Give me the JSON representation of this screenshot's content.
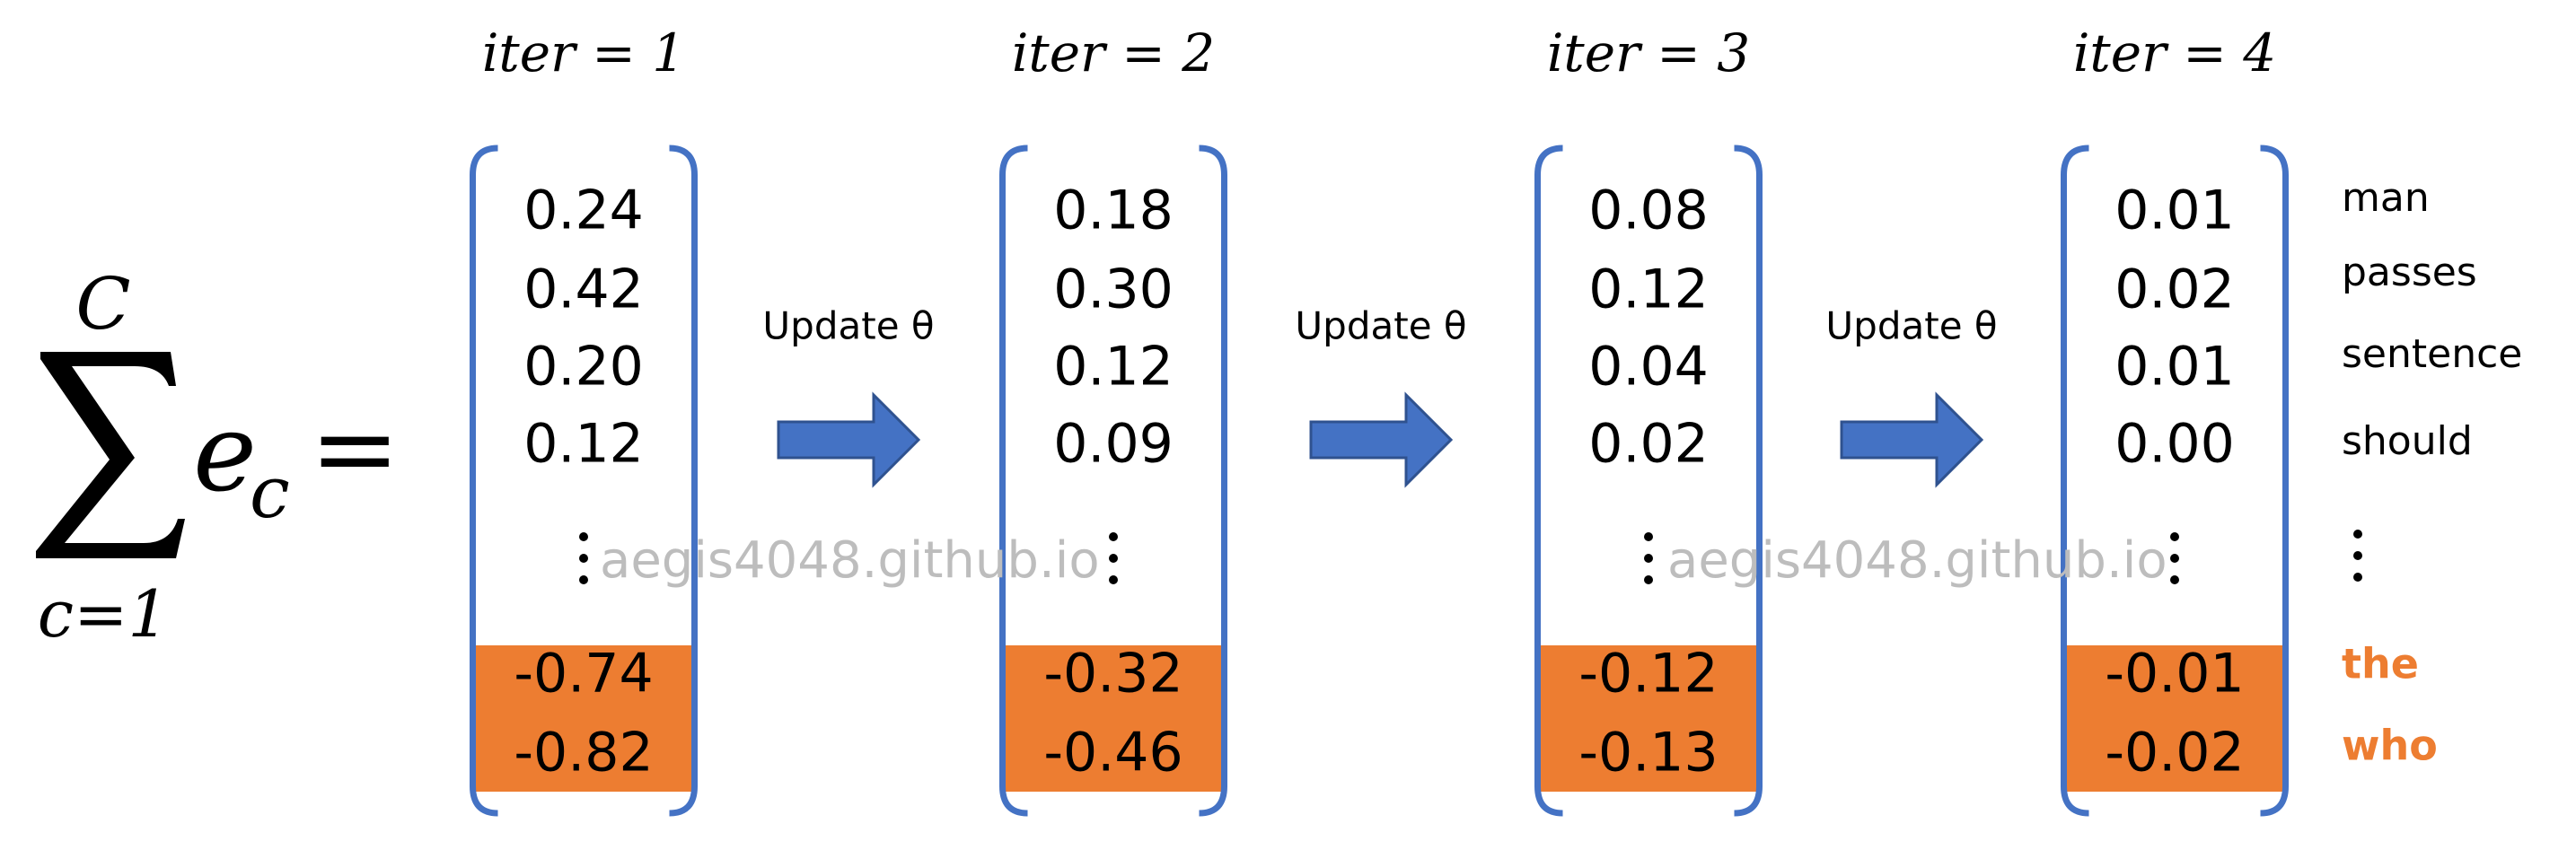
{
  "formula": {
    "upper": "C",
    "lower": "c=1",
    "term": "e",
    "subscript": "c",
    "equals": "="
  },
  "columns": [
    {
      "label": "iter = 1",
      "values": [
        "0.24",
        "0.42",
        "0.20",
        "0.12"
      ],
      "highlighted": [
        "-0.74",
        "-0.82"
      ]
    },
    {
      "label": "iter = 2",
      "values": [
        "0.18",
        "0.30",
        "0.12",
        "0.09"
      ],
      "highlighted": [
        "-0.32",
        "-0.46"
      ]
    },
    {
      "label": "iter = 3",
      "values": [
        "0.08",
        "0.12",
        "0.04",
        "0.02"
      ],
      "highlighted": [
        "-0.12",
        "-0.13"
      ]
    },
    {
      "label": "iter = 4",
      "values": [
        "0.01",
        "0.02",
        "0.01",
        "0.00"
      ],
      "highlighted": [
        "-0.01",
        "-0.02"
      ]
    }
  ],
  "updates": [
    "Update θ",
    "Update θ",
    "Update θ"
  ],
  "words": [
    "man",
    "passes",
    "sentence",
    "should"
  ],
  "highlighted_words": [
    "the",
    "who"
  ],
  "watermarks": [
    "aegis4048.github.io",
    "aegis4048.github.io"
  ]
}
